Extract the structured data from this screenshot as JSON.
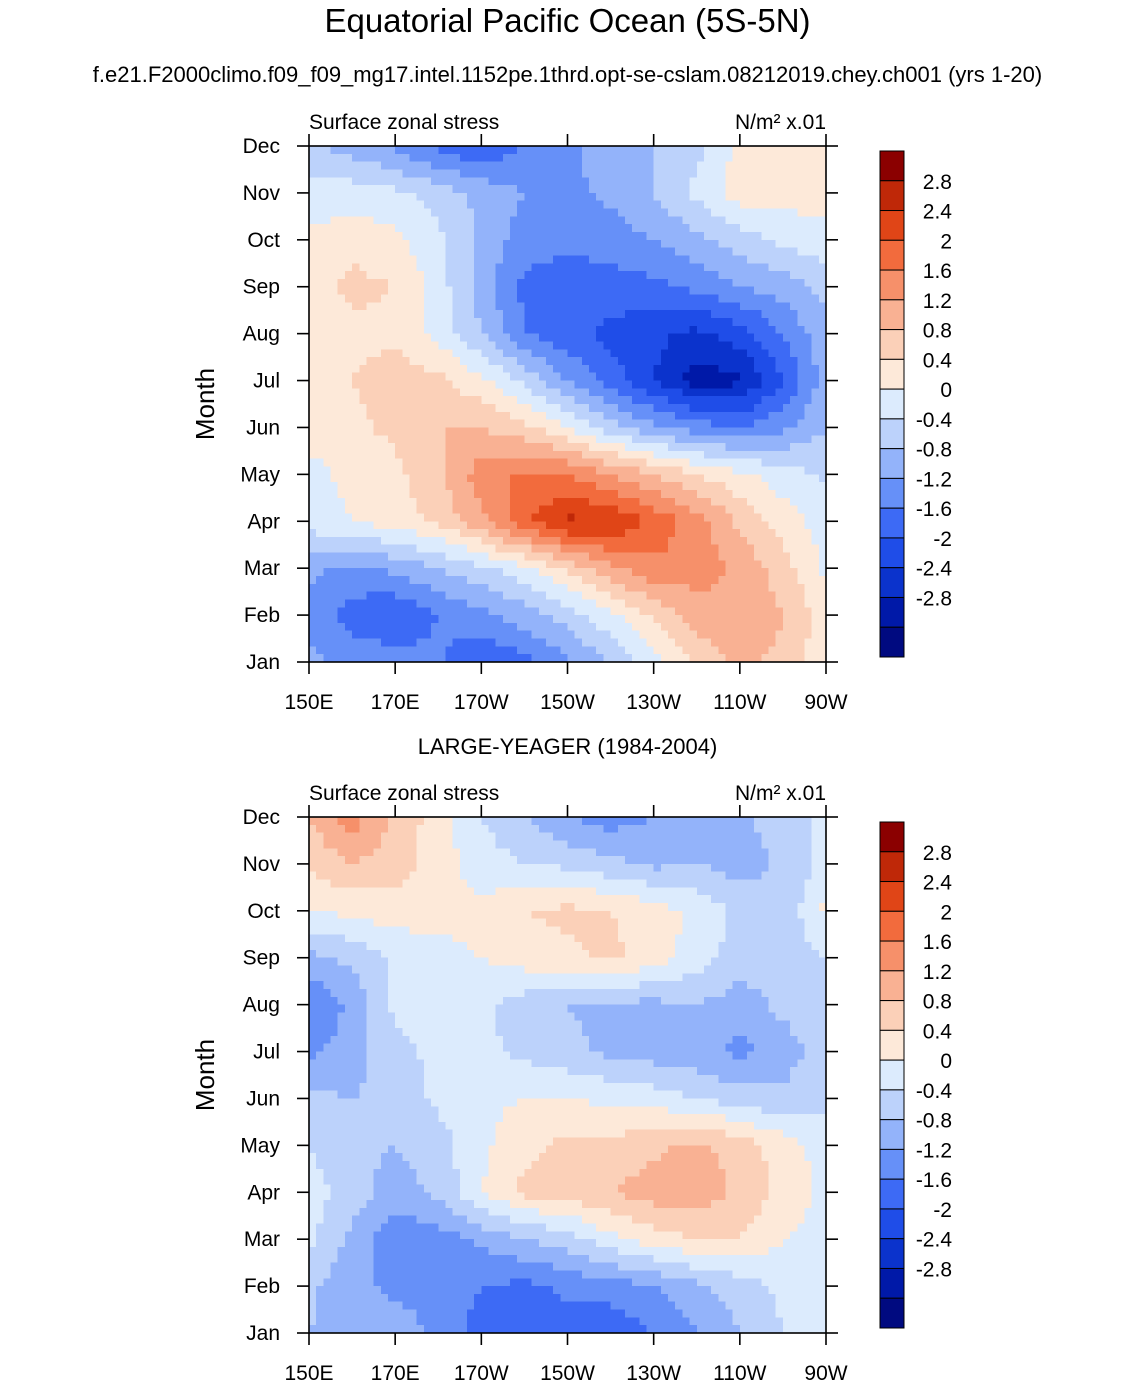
{
  "title": "Equatorial Pacific Ocean (5S-5N)",
  "case_title": "f.e21.F2000climo.f09_f09_mg17.intel.1152pe.1thrd.opt-se-cslam.08212019.chey.ch001 (yrs 1-20)",
  "chart_data": [
    {
      "type": "heatmap",
      "name": "model",
      "title": "",
      "left_label": "Surface zonal stress",
      "units_label": "N/m² x.01",
      "xlabel": "",
      "ylabel": "Month",
      "x_ticks": [
        "150E",
        "170E",
        "170W",
        "150W",
        "130W",
        "110W",
        "90W"
      ],
      "x_range_deg_east": [
        150,
        270
      ],
      "y_ticks": [
        "Jan",
        "Feb",
        "Mar",
        "Apr",
        "May",
        "Jun",
        "Jul",
        "Aug",
        "Sep",
        "Oct",
        "Nov",
        "Dec"
      ],
      "levels": [
        -2.8,
        -2.4,
        -2,
        -1.6,
        -1.2,
        -0.8,
        -0.4,
        0,
        0.4,
        0.8,
        1.2,
        1.6,
        2,
        2.4,
        2.8
      ],
      "palette": [
        "#000a80",
        "#0019a8",
        "#0b33cc",
        "#1f4de8",
        "#3d6af5",
        "#6690f8",
        "#93b3fa",
        "#bcd2fb",
        "#dcebfd",
        "#fde9d9",
        "#fbd0b8",
        "#f9b193",
        "#f6906a",
        "#f26b3d",
        "#e04517",
        "#bf2808",
        "#8b0000"
      ],
      "grid_lons": [
        150,
        160,
        170,
        180,
        190,
        200,
        210,
        220,
        230,
        240,
        250,
        260,
        270
      ],
      "values": [
        [
          -0.7,
          -0.9,
          -1.0,
          -1.1,
          -1.6,
          -1.3,
          -0.9,
          -0.4,
          0.3,
          0.9,
          1.3,
          1.1,
          0.5
        ],
        [
          -1.0,
          -1.4,
          -1.6,
          -1.2,
          -0.9,
          -0.6,
          -0.2,
          0.3,
          0.9,
          1.4,
          1.6,
          1.2,
          0.6
        ],
        [
          -0.7,
          -0.9,
          -0.7,
          -0.4,
          -0.1,
          0.3,
          0.9,
          1.5,
          1.9,
          1.8,
          1.5,
          1.0,
          0.3
        ],
        [
          0.2,
          0.4,
          0.6,
          0.9,
          1.5,
          2.3,
          2.9,
          2.8,
          2.3,
          1.8,
          1.1,
          0.6,
          0.2
        ],
        [
          0.3,
          0.5,
          0.7,
          1.1,
          1.8,
          2.1,
          2.0,
          1.6,
          1.2,
          0.8,
          0.5,
          0.2,
          -0.1
        ],
        [
          0.5,
          0.7,
          0.9,
          1.2,
          1.2,
          0.9,
          0.4,
          -0.2,
          -0.7,
          -1.0,
          -1.2,
          -0.9,
          -0.4
        ],
        [
          0.6,
          0.8,
          1.0,
          0.9,
          0.5,
          -0.1,
          -0.8,
          -1.4,
          -2.0,
          -2.6,
          -2.5,
          -1.6,
          -0.6
        ],
        [
          0.5,
          0.7,
          0.7,
          0.3,
          -0.4,
          -1.2,
          -1.5,
          -1.7,
          -1.9,
          -2.1,
          -1.8,
          -1.2,
          -0.5
        ],
        [
          0.6,
          0.9,
          0.8,
          0.2,
          -0.6,
          -1.3,
          -1.4,
          -1.4,
          -1.3,
          -1.1,
          -0.8,
          -0.6,
          -0.3
        ],
        [
          0.5,
          0.7,
          0.5,
          0.1,
          -0.5,
          -1.0,
          -1.1,
          -1.0,
          -0.8,
          -0.5,
          -0.2,
          0.1,
          0.3
        ],
        [
          0.1,
          0.2,
          0.1,
          -0.2,
          -0.5,
          -0.8,
          -0.9,
          -0.7,
          -0.4,
          0.1,
          0.6,
          0.6,
          0.5
        ],
        [
          -0.3,
          -0.6,
          -0.9,
          -1.3,
          -1.6,
          -1.2,
          -0.9,
          -0.6,
          -0.4,
          -0.1,
          0.5,
          0.6,
          0.5
        ]
      ]
    },
    {
      "type": "heatmap",
      "name": "observations",
      "title": "LARGE-YEAGER (1984-2004)",
      "left_label": "Surface zonal stress",
      "units_label": "N/m² x.01",
      "xlabel": "",
      "ylabel": "Month",
      "x_ticks": [
        "150E",
        "170E",
        "170W",
        "150W",
        "130W",
        "110W",
        "90W"
      ],
      "x_range_deg_east": [
        150,
        270
      ],
      "y_ticks": [
        "Jan",
        "Feb",
        "Mar",
        "Apr",
        "May",
        "Jun",
        "Jul",
        "Aug",
        "Sep",
        "Oct",
        "Nov",
        "Dec"
      ],
      "levels": [
        -2.8,
        -2.4,
        -2,
        -1.6,
        -1.2,
        -0.8,
        -0.4,
        0,
        0.4,
        0.8,
        1.2,
        1.6,
        2,
        2.4,
        2.8
      ],
      "palette": [
        "#000a80",
        "#0019a8",
        "#0b33cc",
        "#1f4de8",
        "#3d6af5",
        "#6690f8",
        "#93b3fa",
        "#bcd2fb",
        "#dcebfd",
        "#fde9d9",
        "#fbd0b8",
        "#f9b193",
        "#f6906a",
        "#f26b3d",
        "#e04517",
        "#bf2808",
        "#8b0000"
      ],
      "grid_lons": [
        150,
        160,
        170,
        180,
        190,
        200,
        210,
        220,
        230,
        240,
        250,
        260,
        270
      ],
      "values": [
        [
          -0.4,
          -0.5,
          -0.6,
          -0.9,
          -1.4,
          -1.6,
          -1.4,
          -1.5,
          -1.2,
          -0.8,
          -0.4,
          0.0,
          0.3
        ],
        [
          -0.3,
          -0.7,
          -0.9,
          -0.9,
          -1.2,
          -1.3,
          -1.1,
          -1.0,
          -0.8,
          -0.5,
          -0.2,
          0.1,
          0.3
        ],
        [
          0.1,
          -0.5,
          -1.1,
          -1.0,
          -0.7,
          -0.4,
          -0.2,
          0.3,
          0.6,
          0.8,
          0.8,
          0.4,
          0.2
        ],
        [
          0.2,
          -0.2,
          -0.6,
          -0.3,
          0.4,
          0.9,
          1.0,
          1.2,
          1.4,
          1.5,
          1.1,
          0.7,
          0.3
        ],
        [
          0.0,
          -0.3,
          -0.4,
          -0.2,
          0.3,
          0.7,
          0.9,
          0.9,
          1.1,
          1.3,
          1.0,
          0.6,
          0.2
        ],
        [
          -0.3,
          -0.4,
          -0.3,
          0.1,
          0.3,
          0.4,
          0.4,
          0.3,
          0.2,
          0.0,
          -0.2,
          -0.3,
          -0.1
        ],
        [
          -0.9,
          -0.6,
          -0.1,
          0.1,
          0.1,
          -0.1,
          -0.3,
          -0.5,
          -0.6,
          -0.7,
          -0.9,
          -0.6,
          -0.2
        ],
        [
          -1.2,
          -0.7,
          0.1,
          0.2,
          0.1,
          -0.2,
          -0.4,
          -0.5,
          -0.5,
          -0.4,
          -0.6,
          -0.3,
          -0.1
        ],
        [
          -0.5,
          -0.3,
          0.1,
          0.3,
          0.4,
          0.6,
          0.7,
          0.9,
          0.6,
          0.2,
          -0.2,
          -0.2,
          0.0
        ],
        [
          0.4,
          0.5,
          0.6,
          0.5,
          0.5,
          0.8,
          0.9,
          0.8,
          0.6,
          0.3,
          -0.1,
          -0.3,
          0.5
        ],
        [
          0.9,
          1.2,
          1.0,
          0.6,
          0.2,
          0.0,
          -0.1,
          -0.3,
          -0.5,
          -0.4,
          -0.6,
          -0.3,
          0.1
        ],
        [
          1.2,
          1.8,
          1.1,
          0.6,
          0.0,
          -0.4,
          -0.8,
          -1.0,
          -0.8,
          -0.6,
          -0.5,
          -0.2,
          0.1
        ]
      ]
    }
  ]
}
